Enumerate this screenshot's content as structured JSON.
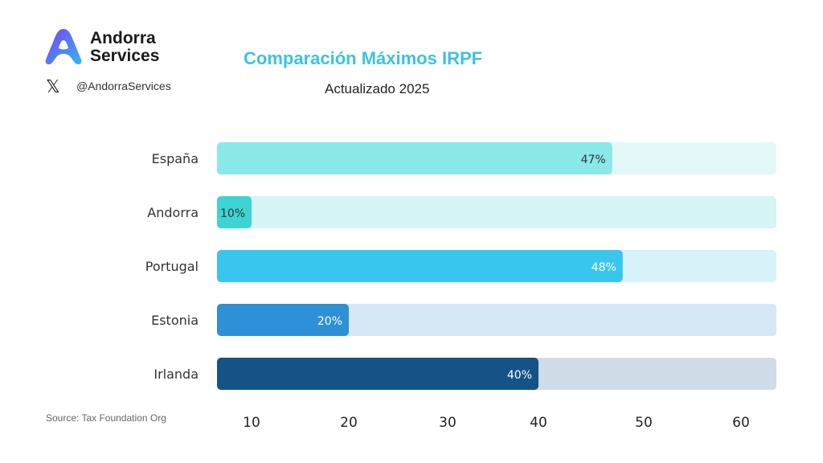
{
  "header": {
    "brand_line1": "Andorra",
    "brand_line2": "Services",
    "social_icon": "x-logo-icon",
    "handle": "@AndorraServices",
    "source": "Source: Tax Foundation Org"
  },
  "chart_data": {
    "type": "bar",
    "orientation": "horizontal",
    "title": "Comparación Máximos IRPF",
    "subtitle": "Actualizado 2025",
    "title_color": "#3cc3e0",
    "categories": [
      "España",
      "Andorra",
      "Portugal",
      "Estonia",
      "Irlanda"
    ],
    "values": [
      47,
      10,
      48,
      20,
      40
    ],
    "data_labels": [
      "47%",
      "10%",
      "48%",
      "20%",
      "40%"
    ],
    "colors": [
      "#8ae8e8",
      "#3dd4d4",
      "#38c6ee",
      "#2e90d6",
      "#155286"
    ],
    "track_colors": [
      "#e3f8f8",
      "#d6f5f5",
      "#d8f2fa",
      "#d6e8f5",
      "#d0dce8"
    ],
    "label_colors": [
      "#333333",
      "#333333",
      "#ffffff",
      "#ffffff",
      "#ffffff"
    ],
    "x_ticks": [
      "10",
      "20",
      "30",
      "40",
      "50",
      "60"
    ],
    "xlim": [
      0,
      63
    ],
    "grid": false,
    "legend": "none"
  }
}
